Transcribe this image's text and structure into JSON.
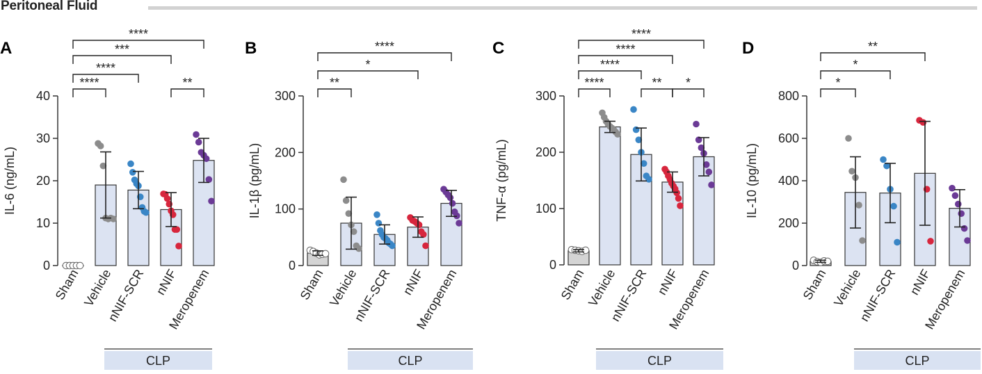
{
  "figure_title": "Peritoneal Fluid",
  "chart_data": [
    {
      "type": "bar",
      "panel": "A",
      "ylabel": "IL-6 (ng/mL)",
      "ylim": [
        0,
        40
      ],
      "yticks": [
        0,
        10,
        20,
        30,
        40
      ],
      "group_label": "CLP",
      "categories": [
        "Sham",
        "Vehicle",
        "nNIF-SCR",
        "nNIF",
        "Meropenem"
      ],
      "means": [
        0,
        19,
        17.8,
        13.2,
        24.8
      ],
      "sd": [
        0,
        7.8,
        4.4,
        4,
        5.2
      ],
      "points": [
        [
          0,
          0,
          0,
          0,
          0
        ],
        [
          28.8,
          28.2,
          23.5,
          11.2,
          11,
          11.2,
          11
        ],
        [
          24,
          22,
          20.2,
          19.3,
          18.8,
          16.2,
          13.7,
          12.8,
          12.5
        ],
        [
          16.9,
          16.8,
          15.8,
          14.5,
          12.9,
          12,
          8.5,
          8.5,
          4.6
        ],
        [
          30.9,
          29.1,
          26.7,
          26,
          25.2,
          20.3,
          15.2
        ]
      ],
      "significance": [
        {
          "from": 0,
          "to": 1,
          "label": "****"
        },
        {
          "from": 0,
          "to": 2,
          "label": "****"
        },
        {
          "from": 0,
          "to": 3,
          "label": "***"
        },
        {
          "from": 0,
          "to": 4,
          "label": "****"
        },
        {
          "from": 3,
          "to": 4,
          "label": "**"
        }
      ]
    },
    {
      "type": "bar",
      "panel": "B",
      "ylabel": "IL-1β (pg/mL)",
      "ylim": [
        0,
        300
      ],
      "yticks": [
        0,
        100,
        200,
        300
      ],
      "group_label": "CLP",
      "categories": [
        "Sham",
        "Vehicle",
        "nNIF-SCR",
        "nNIF",
        "Meropenem"
      ],
      "means": [
        22,
        75,
        55,
        68,
        110
      ],
      "sd": [
        4,
        46,
        17,
        18,
        23
      ],
      "points": [
        [
          27,
          25,
          22,
          19,
          20,
          21
        ],
        [
          152,
          115,
          92,
          72,
          60,
          35,
          30
        ],
        [
          90,
          75,
          62,
          55,
          50,
          48,
          45,
          40,
          38,
          35
        ],
        [
          85,
          80,
          78,
          75,
          72,
          60,
          55,
          35
        ],
        [
          135,
          130,
          125,
          120,
          110,
          95,
          88,
          75
        ]
      ],
      "significance": [
        {
          "from": 0,
          "to": 1,
          "label": "**"
        },
        {
          "from": 0,
          "to": 3,
          "label": "*"
        },
        {
          "from": 0,
          "to": 4,
          "label": "****"
        }
      ]
    },
    {
      "type": "bar",
      "panel": "C",
      "ylabel": "TNF-α (pg/mL)",
      "ylim": [
        0,
        300
      ],
      "yticks": [
        0,
        100,
        200,
        300
      ],
      "group_label": "CLP",
      "categories": [
        "Sham",
        "Vehicle",
        "nNIF-SCR",
        "nNIF",
        "Meropenem"
      ],
      "means": [
        25,
        245,
        196,
        147,
        192
      ],
      "sd": [
        2,
        10,
        47,
        18,
        34
      ],
      "points": [
        [
          27,
          26,
          25,
          24,
          26
        ],
        [
          270,
          262,
          255,
          250,
          246,
          243,
          240,
          236,
          232
        ],
        [
          276,
          240,
          222,
          200,
          180,
          158,
          152
        ],
        [
          170,
          165,
          158,
          152,
          145,
          140,
          135,
          128,
          118,
          105
        ],
        [
          250,
          222,
          208,
          198,
          178,
          165,
          142
        ]
      ],
      "significance": [
        {
          "from": 0,
          "to": 1,
          "label": "****"
        },
        {
          "from": 0,
          "to": 2,
          "label": "****"
        },
        {
          "from": 0,
          "to": 3,
          "label": "****"
        },
        {
          "from": 0,
          "to": 4,
          "label": "****"
        },
        {
          "from": 2,
          "to": 3,
          "label": "**"
        },
        {
          "from": 3,
          "to": 4,
          "label": "*"
        }
      ]
    },
    {
      "type": "bar",
      "panel": "D",
      "ylabel": "IL-10  (pg/mL)",
      "ylim": [
        0,
        800
      ],
      "yticks": [
        0,
        200,
        400,
        600,
        800
      ],
      "group_label": "CLP",
      "categories": [
        "Sham",
        "Vehicle",
        "nNIF-SCR",
        "nNIF",
        "Meropenem"
      ],
      "means": [
        20,
        345,
        342,
        435,
        270
      ],
      "sd": [
        5,
        168,
        140,
        245,
        88
      ],
      "points": [
        [
          25,
          18,
          15,
          22,
          20
        ],
        [
          600,
          445,
          415,
          285,
          118
        ],
        [
          500,
          470,
          360,
          280,
          110
        ],
        [
          685,
          675,
          360,
          115
        ],
        [
          365,
          330,
          290,
          245,
          175,
          118
        ]
      ],
      "significance": [
        {
          "from": 0,
          "to": 1,
          "label": "*"
        },
        {
          "from": 0,
          "to": 2,
          "label": "*"
        },
        {
          "from": 0,
          "to": 3,
          "label": "**"
        }
      ]
    }
  ],
  "colors": {
    "bar_fill": "#dce3f2",
    "bar_stroke": "#333333",
    "clp_fill": "#d9e2f2",
    "groups": [
      "#ffffff",
      "#8c8c8c",
      "#3a86c6",
      "#d7263d",
      "#6b3a96"
    ],
    "sham_bar": "#d4d4d4"
  }
}
